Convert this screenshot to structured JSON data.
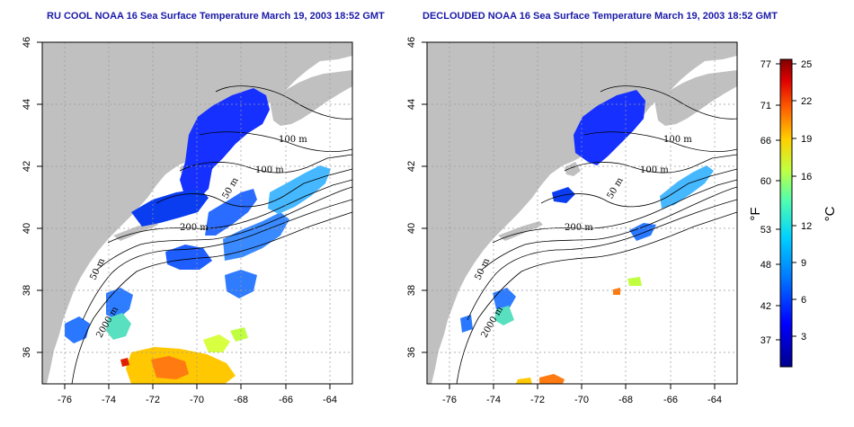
{
  "panels": [
    {
      "title": "RU COOL NOAA 16 Sea Surface Temperature March 19, 2003 18:52 GMT",
      "contours": [
        "100 m",
        "100 m",
        "50 m",
        "200 m",
        "50 m",
        "2000 m"
      ]
    },
    {
      "title": "DECLOUDED NOAA 16 Sea Surface Temperature March 19, 2003 18:52 GMT",
      "contours": [
        "100 m",
        "100 m",
        "50 m",
        "200 m",
        "50 m",
        "2000 m"
      ]
    }
  ],
  "axes": {
    "x_ticks": [
      "-76",
      "-74",
      "-72",
      "-70",
      "-68",
      "-66",
      "-64"
    ],
    "y_ticks": [
      "36",
      "38",
      "40",
      "42",
      "44",
      "46"
    ]
  },
  "colorbar": {
    "fahrenheit_ticks": [
      "77",
      "71",
      "66",
      "60",
      "53",
      "48",
      "42",
      "37"
    ],
    "celsius_ticks": [
      "25",
      "22",
      "19",
      "16",
      "12",
      "9",
      "6",
      "3"
    ],
    "fahrenheit_label": "°F",
    "celsius_label": "°C",
    "colors": [
      "#00008c",
      "#0000ff",
      "#0060ff",
      "#00c0ff",
      "#40ffc0",
      "#c0ff40",
      "#ffd000",
      "#ff6000",
      "#e00000",
      "#800000"
    ]
  },
  "colors": {
    "land": "#c0c0c0",
    "title": "#1a1aa8"
  }
}
